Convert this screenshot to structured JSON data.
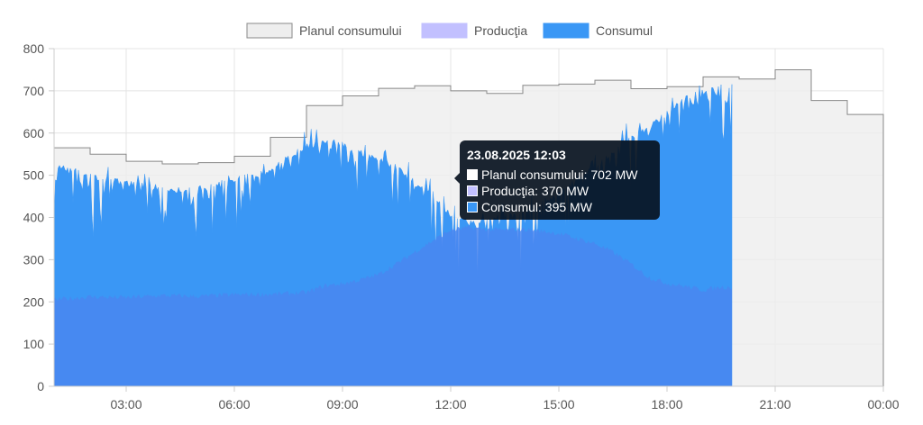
{
  "chart_data": {
    "type": "area",
    "title": "",
    "xlabel": "",
    "ylabel": "",
    "ylim": [
      0,
      800
    ],
    "yticks": [
      0,
      100,
      200,
      300,
      400,
      500,
      600,
      700,
      800
    ],
    "xlim": [
      1.0,
      24.0
    ],
    "xticks": [
      {
        "x": 3,
        "label": "03:00"
      },
      {
        "x": 6,
        "label": "06:00"
      },
      {
        "x": 9,
        "label": "09:00"
      },
      {
        "x": 12,
        "label": "12:00"
      },
      {
        "x": 15,
        "label": "15:00"
      },
      {
        "x": 18,
        "label": "18:00"
      },
      {
        "x": 21,
        "label": "21:00"
      },
      {
        "x": 24,
        "label": "00:00"
      }
    ],
    "grid": true,
    "legend_position": "top",
    "series": [
      {
        "name": "Planul consumului",
        "kind": "step",
        "color": "#eeeeee",
        "border": "#888888",
        "x": [
          1,
          2,
          3,
          4,
          5,
          6,
          7,
          8,
          9,
          10,
          11,
          12,
          13,
          14,
          15,
          16,
          17,
          18,
          19,
          20,
          21,
          22,
          23,
          24
        ],
        "values": [
          565,
          550,
          533,
          527,
          530,
          545,
          590,
          665,
          688,
          706,
          712,
          700,
          694,
          713,
          716,
          725,
          705,
          710,
          733,
          728,
          750,
          677,
          644,
          644
        ]
      },
      {
        "name": "Producţia",
        "color": "#c2c0ff",
        "x": [
          1.0,
          2.0,
          3.0,
          4.0,
          5.0,
          6.0,
          7.0,
          8.0,
          8.5,
          9.0,
          9.5,
          10.0,
          10.5,
          11.0,
          11.5,
          12.0,
          12.5,
          13.0,
          13.5,
          14.0,
          14.5,
          15.0,
          15.5,
          16.0,
          16.5,
          17.0,
          17.5,
          18.0,
          18.5,
          19.0,
          19.5,
          19.8
        ],
        "values": [
          205,
          212,
          210,
          215,
          213,
          217,
          218,
          222,
          238,
          243,
          252,
          265,
          290,
          318,
          345,
          370,
          376,
          372,
          370,
          372,
          368,
          362,
          350,
          338,
          318,
          290,
          258,
          244,
          237,
          228,
          235,
          235
        ]
      },
      {
        "name": "Consumul",
        "color": "#3a97f5",
        "x": [
          1.0,
          1.5,
          2.0,
          2.5,
          3.0,
          3.5,
          4.0,
          4.5,
          5.0,
          5.5,
          6.0,
          6.5,
          7.0,
          7.5,
          8.0,
          8.5,
          9.0,
          9.5,
          10.0,
          10.5,
          11.0,
          11.5,
          12.0,
          12.5,
          13.0,
          13.5,
          14.0,
          14.5,
          15.0,
          15.5,
          16.0,
          16.5,
          17.0,
          17.5,
          18.0,
          18.5,
          19.0,
          19.5,
          19.8
        ],
        "values": [
          530,
          520,
          505,
          495,
          490,
          482,
          478,
          472,
          475,
          485,
          498,
          505,
          520,
          550,
          575,
          590,
          580,
          560,
          545,
          525,
          490,
          465,
          410,
          392,
          405,
          410,
          420,
          440,
          465,
          500,
          525,
          560,
          595,
          620,
          655,
          690,
          705,
          715,
          718
        ]
      }
    ],
    "tooltip": {
      "title": "23.08.2025 12:03",
      "rows": [
        {
          "label": "Planul consumului: 702 MW",
          "color": "#ffffff"
        },
        {
          "label": "Producţia: 370 MW",
          "color": "#c2c0ff"
        },
        {
          "label": "Consumul: 395 MW",
          "color": "#3a97f5"
        }
      ]
    }
  }
}
